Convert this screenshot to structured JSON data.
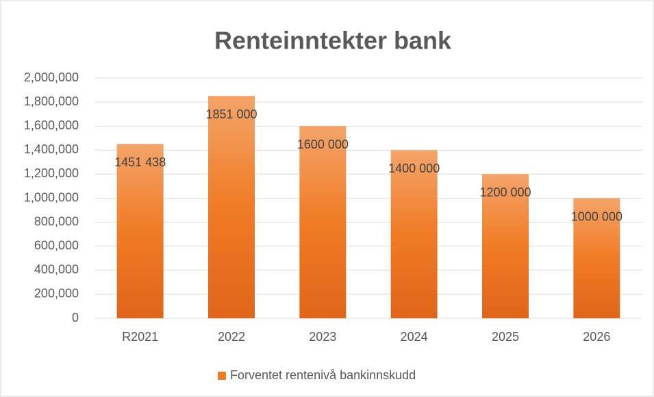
{
  "chart_data": {
    "type": "bar",
    "title": "Renteinntekter bank",
    "categories": [
      "R2021",
      "2022",
      "2023",
      "2024",
      "2025",
      "2026"
    ],
    "series": [
      {
        "name": "Forventet rentenivå bankinnskudd",
        "color": "#f07b25",
        "values": [
          1451438,
          1851000,
          1600000,
          1400000,
          1200000,
          1000000
        ],
        "value_labels": [
          "1451 438",
          "1851 000",
          "1600 000",
          "1400 000",
          "1200 000",
          "1000 000"
        ]
      }
    ],
    "ylim": [
      0,
      2000000
    ],
    "yticks": [
      0,
      {
        "value": 200000,
        "label": "200,000"
      },
      {
        "value": 400000,
        "label": "400,000"
      },
      {
        "value": 600000,
        "label": "600,000"
      },
      {
        "value": 800000,
        "label": "800,000"
      },
      {
        "value": 1000000,
        "label": "1,000,000"
      },
      {
        "value": 1200000,
        "label": "1,200,000"
      },
      {
        "value": 1400000,
        "label": "1,400,000"
      },
      {
        "value": 1600000,
        "label": "1,600,000"
      },
      {
        "value": 1800000,
        "label": "1,800,000"
      },
      {
        "value": 2000000,
        "label": "2,000,000"
      }
    ],
    "grid": true,
    "legend": "bottom"
  }
}
